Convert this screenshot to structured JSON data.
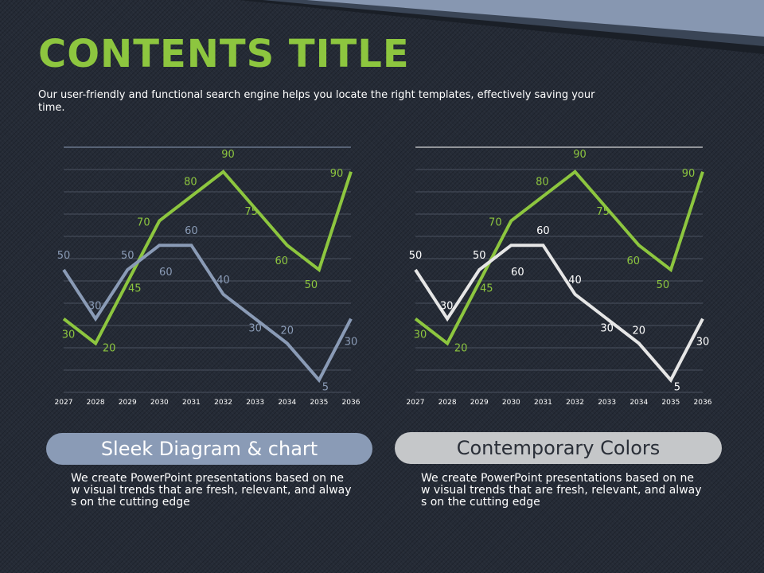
{
  "slide": {
    "title": "CONTENTS TITLE",
    "subtitle": "Our user-friendly and functional search engine helps you locate the right templates, effectively saving your time."
  },
  "colors": {
    "green": "#8dc63f",
    "steel_blue": "#8a9bb6",
    "light_gray": "#e6e6e6",
    "background": "#252b36"
  },
  "chart_data": [
    {
      "type": "line",
      "x": [
        "2027",
        "2028",
        "2029",
        "2030",
        "2031",
        "2032",
        "2033",
        "2034",
        "2035",
        "2036"
      ],
      "ylim": [
        0,
        100
      ],
      "grid": true,
      "series": [
        {
          "values": [
            30,
            20,
            45,
            70,
            80,
            90,
            75,
            60,
            50,
            90
          ],
          "color": "#8dc63f"
        },
        {
          "values": [
            50,
            30,
            50,
            60,
            60,
            40,
            30,
            20,
            5,
            30
          ],
          "color": "#8a9bb6"
        }
      ]
    },
    {
      "type": "line",
      "x": [
        "2027",
        "2028",
        "2029",
        "2030",
        "2031",
        "2032",
        "2033",
        "2034",
        "2035",
        "2036"
      ],
      "ylim": [
        0,
        100
      ],
      "grid": true,
      "series": [
        {
          "values": [
            30,
            20,
            45,
            70,
            80,
            90,
            75,
            60,
            50,
            90
          ],
          "color": "#8dc63f"
        },
        {
          "values": [
            50,
            30,
            50,
            60,
            60,
            40,
            30,
            20,
            5,
            30
          ],
          "color": "#e6e6e6"
        }
      ]
    }
  ],
  "captions": [
    {
      "heading": "Sleek Diagram & chart",
      "body": "We create PowerPoint presentations based on new visual trends that are fresh, relevant, and always on the cutting edge"
    },
    {
      "heading": "Contemporary Colors",
      "body": "We create PowerPoint presentations based on new visual trends that are fresh, relevant, and always on the cutting edge"
    }
  ]
}
